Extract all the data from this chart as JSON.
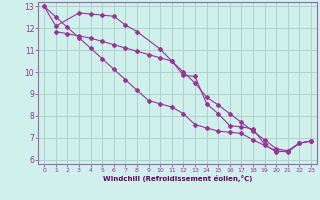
{
  "background_color": "#cff0eb",
  "grid_color": "#aad4ce",
  "line_color": "#993399",
  "marker_color": "#993399",
  "xlabel": "Windchill (Refroidissement éolien,°C)",
  "xlabel_color": "#660066",
  "xlim": [
    -0.5,
    23.5
  ],
  "ylim": [
    5.8,
    13.2
  ],
  "yticks": [
    6,
    7,
    8,
    9,
    10,
    11,
    12,
    13
  ],
  "xticks": [
    0,
    1,
    2,
    3,
    4,
    5,
    6,
    7,
    8,
    9,
    10,
    11,
    12,
    13,
    14,
    15,
    16,
    17,
    18,
    19,
    20,
    21,
    22,
    23
  ],
  "series1_x": [
    0,
    1,
    3,
    4,
    5,
    6,
    7,
    8,
    10,
    11,
    12,
    13,
    14,
    15,
    16,
    17,
    18,
    19,
    20,
    21,
    22,
    23
  ],
  "series1_y": [
    13.0,
    12.1,
    12.7,
    12.65,
    12.6,
    12.55,
    12.15,
    11.85,
    11.05,
    10.5,
    9.85,
    9.8,
    8.55,
    8.1,
    7.55,
    7.5,
    7.4,
    6.7,
    6.35,
    6.4,
    6.75,
    6.85
  ],
  "series2_x": [
    0,
    1,
    2,
    3,
    4,
    5,
    6,
    7,
    8,
    9,
    10,
    11,
    12,
    13,
    14,
    15,
    16,
    17,
    18,
    19,
    20,
    21,
    22,
    23
  ],
  "series2_y": [
    13.0,
    12.52,
    12.04,
    11.57,
    11.09,
    10.61,
    10.13,
    9.65,
    9.17,
    8.7,
    8.55,
    8.4,
    8.1,
    7.6,
    7.45,
    7.3,
    7.25,
    7.2,
    6.9,
    6.65,
    6.4,
    6.35,
    6.75,
    6.85
  ],
  "series3_x": [
    1,
    2,
    3,
    4,
    5,
    6,
    7,
    8,
    9,
    10,
    11,
    12,
    13,
    14,
    15,
    16,
    17,
    18,
    19,
    20,
    21,
    22,
    23
  ],
  "series3_y": [
    11.85,
    11.75,
    11.65,
    11.55,
    11.4,
    11.25,
    11.1,
    10.95,
    10.8,
    10.65,
    10.5,
    10.0,
    9.5,
    8.85,
    8.5,
    8.1,
    7.7,
    7.3,
    6.9,
    6.5,
    6.4,
    6.75,
    6.85
  ]
}
